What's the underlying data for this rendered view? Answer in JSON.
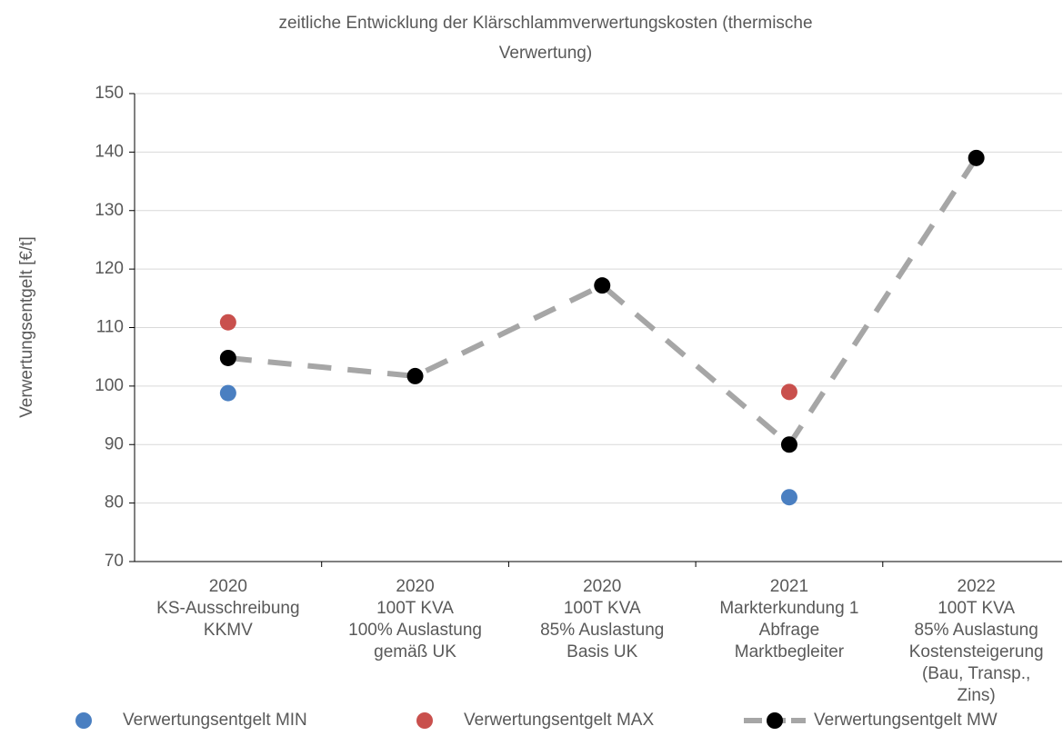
{
  "chart_data": {
    "type": "line",
    "title": [
      "zeitliche Entwicklung der Klärschlammverwertungskosten (thermische",
      "Verwertung)"
    ],
    "ylabel": "Verwertungsentgelt  [€/t]",
    "categories": [
      [
        "2020",
        "KS-Ausschreibung",
        "KKMV"
      ],
      [
        "2020",
        "100T KVA",
        "100% Auslastung",
        "gemäß UK"
      ],
      [
        "2020",
        "100T KVA",
        "85% Auslastung",
        "Basis UK"
      ],
      [
        "2021",
        "Markterkundung 1",
        "Abfrage",
        "Marktbegleiter"
      ],
      [
        "2022",
        "100T KVA",
        "85% Auslastung",
        "Kostensteigerung",
        "(Bau, Transp.,",
        "Zins)"
      ]
    ],
    "series": [
      {
        "name": "Verwertungsentgelt MIN",
        "color": "#4a7fc1",
        "style": "marker",
        "values": [
          98.8,
          null,
          null,
          81,
          null
        ]
      },
      {
        "name": "Verwertungsentgelt MAX",
        "color": "#c9504d",
        "style": "marker",
        "values": [
          110.9,
          null,
          null,
          99,
          null
        ]
      },
      {
        "name": "Verwertungsentgelt MW",
        "color": "#000000",
        "line_color": "#a6a6a6",
        "style": "dashed-line-marker",
        "values": [
          104.8,
          101.7,
          117.2,
          90,
          139
        ]
      }
    ],
    "ylim": [
      70,
      150
    ],
    "yticks": [
      70,
      80,
      90,
      100,
      110,
      120,
      130,
      140,
      150
    ],
    "grid": true,
    "legend": "bottom"
  }
}
